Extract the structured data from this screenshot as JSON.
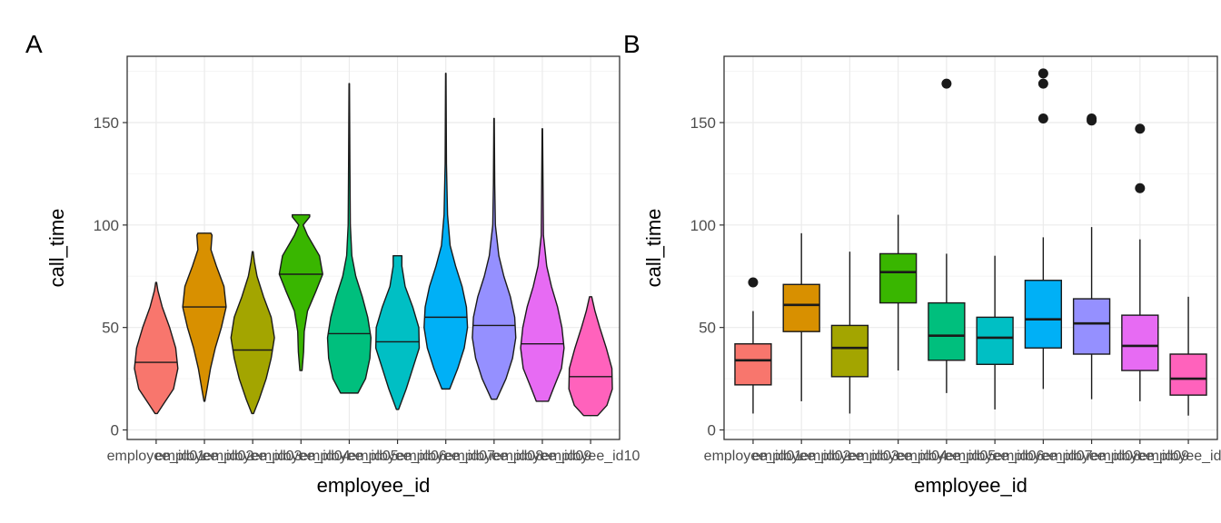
{
  "colors": {
    "panel_border": "#333333",
    "grid_major": "#ebebeb",
    "grid_minor": "#f5f5f5",
    "outline": "#1a1a1a",
    "tick_text": "#4d4d4d",
    "fills": [
      "#F8766D",
      "#D89000",
      "#A3A500",
      "#39B600",
      "#00BF7D",
      "#00BFC4",
      "#00B0F6",
      "#9590FF",
      "#E76BF3",
      "#FF62BC"
    ]
  },
  "chart_data": [
    {
      "type": "violin",
      "panel_tag": "A",
      "xlabel": "employee_id",
      "ylabel": "call_time",
      "ylim": [
        0,
        180
      ],
      "y_ticks": [
        0,
        50,
        100,
        150
      ],
      "grid": true,
      "legend": "none",
      "categories": [
        "employee_id01",
        "employee_id02",
        "employee_id03",
        "employee_id04",
        "employee_id05",
        "employee_id06",
        "employee_id07",
        "employee_id08",
        "employee_id09",
        "employee_id10"
      ],
      "violins": [
        {
          "min": 8,
          "max": 72,
          "median": 33,
          "profile": [
            [
              8,
              0.05
            ],
            [
              12,
              0.3
            ],
            [
              20,
              0.8
            ],
            [
              30,
              1.0
            ],
            [
              40,
              0.9
            ],
            [
              50,
              0.62
            ],
            [
              60,
              0.28
            ],
            [
              68,
              0.08
            ],
            [
              72,
              0.02
            ]
          ]
        },
        {
          "min": 14,
          "max": 96,
          "median": 60,
          "profile": [
            [
              14,
              0.02
            ],
            [
              20,
              0.12
            ],
            [
              30,
              0.28
            ],
            [
              40,
              0.5
            ],
            [
              50,
              0.78
            ],
            [
              60,
              1.0
            ],
            [
              70,
              0.9
            ],
            [
              80,
              0.55
            ],
            [
              88,
              0.3
            ],
            [
              95,
              0.35
            ],
            [
              96,
              0.3
            ]
          ]
        },
        {
          "min": 8,
          "max": 87,
          "median": 39,
          "profile": [
            [
              8,
              0.04
            ],
            [
              15,
              0.3
            ],
            [
              25,
              0.62
            ],
            [
              35,
              0.85
            ],
            [
              45,
              1.0
            ],
            [
              55,
              0.85
            ],
            [
              65,
              0.5
            ],
            [
              75,
              0.2
            ],
            [
              82,
              0.08
            ],
            [
              87,
              0.02
            ]
          ]
        },
        {
          "min": 29,
          "max": 105,
          "median": 76,
          "profile": [
            [
              29,
              0.05
            ],
            [
              38,
              0.12
            ],
            [
              48,
              0.15
            ],
            [
              58,
              0.3
            ],
            [
              68,
              0.7
            ],
            [
              76,
              1.0
            ],
            [
              85,
              0.85
            ],
            [
              95,
              0.3
            ],
            [
              100,
              0.1
            ],
            [
              104,
              0.4
            ],
            [
              105,
              0.4
            ]
          ]
        },
        {
          "min": 18,
          "max": 169,
          "median": 47,
          "profile": [
            [
              18,
              0.4
            ],
            [
              25,
              0.75
            ],
            [
              35,
              0.95
            ],
            [
              45,
              1.0
            ],
            [
              55,
              0.85
            ],
            [
              65,
              0.6
            ],
            [
              75,
              0.3
            ],
            [
              85,
              0.12
            ],
            [
              100,
              0.05
            ],
            [
              130,
              0.03
            ],
            [
              169,
              0.01
            ]
          ]
        },
        {
          "min": 10,
          "max": 85,
          "median": 43,
          "profile": [
            [
              10,
              0.05
            ],
            [
              20,
              0.4
            ],
            [
              30,
              0.7
            ],
            [
              40,
              1.0
            ],
            [
              50,
              0.98
            ],
            [
              60,
              0.7
            ],
            [
              70,
              0.35
            ],
            [
              80,
              0.2
            ],
            [
              85,
              0.2
            ]
          ]
        },
        {
          "min": 20,
          "max": 174,
          "median": 55,
          "profile": [
            [
              20,
              0.18
            ],
            [
              30,
              0.55
            ],
            [
              40,
              0.85
            ],
            [
              50,
              1.0
            ],
            [
              60,
              0.95
            ],
            [
              70,
              0.75
            ],
            [
              80,
              0.45
            ],
            [
              90,
              0.2
            ],
            [
              105,
              0.08
            ],
            [
              130,
              0.03
            ],
            [
              174,
              0.01
            ]
          ]
        },
        {
          "min": 15,
          "max": 152,
          "median": 51,
          "profile": [
            [
              15,
              0.12
            ],
            [
              25,
              0.55
            ],
            [
              35,
              0.85
            ],
            [
              45,
              1.0
            ],
            [
              55,
              0.95
            ],
            [
              65,
              0.75
            ],
            [
              75,
              0.45
            ],
            [
              85,
              0.22
            ],
            [
              100,
              0.06
            ],
            [
              120,
              0.03
            ],
            [
              152,
              0.01
            ]
          ]
        },
        {
          "min": 14,
          "max": 147,
          "median": 42,
          "profile": [
            [
              14,
              0.28
            ],
            [
              20,
              0.5
            ],
            [
              30,
              0.88
            ],
            [
              40,
              1.0
            ],
            [
              50,
              0.9
            ],
            [
              60,
              0.7
            ],
            [
              70,
              0.42
            ],
            [
              80,
              0.2
            ],
            [
              95,
              0.05
            ],
            [
              120,
              0.03
            ],
            [
              147,
              0.01
            ]
          ]
        },
        {
          "min": 7,
          "max": 65,
          "median": 26,
          "profile": [
            [
              7,
              0.32
            ],
            [
              12,
              0.75
            ],
            [
              20,
              1.0
            ],
            [
              30,
              0.98
            ],
            [
              40,
              0.72
            ],
            [
              50,
              0.42
            ],
            [
              58,
              0.2
            ],
            [
              65,
              0.05
            ]
          ]
        }
      ]
    },
    {
      "type": "box",
      "panel_tag": "B",
      "xlabel": "employee_id",
      "ylabel": "call_time",
      "ylim": [
        0,
        180
      ],
      "y_ticks": [
        0,
        50,
        100,
        150
      ],
      "grid": true,
      "legend": "none",
      "categories": [
        "employee_id01",
        "employee_id02",
        "employee_id03",
        "employee_id04",
        "employee_id05",
        "employee_id06",
        "employee_id07",
        "employee_id08",
        "employee_id09",
        "employee_id10"
      ],
      "boxes": [
        {
          "whisker_low": 8,
          "q1": 22,
          "median": 34,
          "q3": 42,
          "whisker_high": 58,
          "outliers": [
            72
          ]
        },
        {
          "whisker_low": 14,
          "q1": 48,
          "median": 61,
          "q3": 71,
          "whisker_high": 96,
          "outliers": []
        },
        {
          "whisker_low": 8,
          "q1": 26,
          "median": 40,
          "q3": 51,
          "whisker_high": 87,
          "outliers": []
        },
        {
          "whisker_low": 29,
          "q1": 62,
          "median": 77,
          "q3": 86,
          "whisker_high": 105,
          "outliers": []
        },
        {
          "whisker_low": 18,
          "q1": 34,
          "median": 46,
          "q3": 62,
          "whisker_high": 86,
          "outliers": [
            169
          ]
        },
        {
          "whisker_low": 10,
          "q1": 32,
          "median": 45,
          "q3": 55,
          "whisker_high": 85,
          "outliers": []
        },
        {
          "whisker_low": 20,
          "q1": 40,
          "median": 54,
          "q3": 73,
          "whisker_high": 94,
          "outliers": [
            174,
            169,
            152
          ]
        },
        {
          "whisker_low": 15,
          "q1": 37,
          "median": 52,
          "q3": 64,
          "whisker_high": 99,
          "outliers": [
            152,
            151
          ]
        },
        {
          "whisker_low": 14,
          "q1": 29,
          "median": 41,
          "q3": 56,
          "whisker_high": 93,
          "outliers": [
            147,
            118
          ]
        },
        {
          "whisker_low": 7,
          "q1": 17,
          "median": 25,
          "q3": 37,
          "whisker_high": 65,
          "outliers": []
        }
      ]
    }
  ]
}
